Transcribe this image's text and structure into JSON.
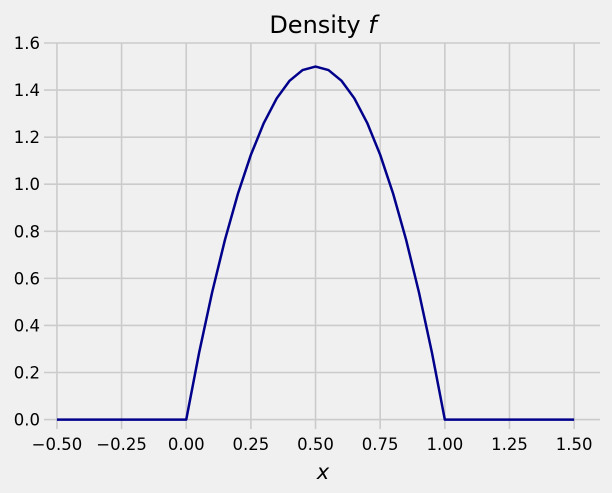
{
  "chart_data": {
    "type": "line",
    "title": "Density ",
    "title_math": "f",
    "xlabel": "x",
    "ylabel": "",
    "xlim": [
      -0.55,
      1.6
    ],
    "ylim": [
      -0.04,
      1.6
    ],
    "xticks": [
      -0.5,
      -0.25,
      0,
      0.25,
      0.5,
      0.75,
      1,
      1.25,
      1.5
    ],
    "xtick_labels": [
      "−0.50",
      "−0.25",
      "0.00",
      "0.25",
      "0.50",
      "0.75",
      "1.00",
      "1.25",
      "1.50"
    ],
    "yticks": [
      0,
      0.2,
      0.4,
      0.6,
      0.8,
      1,
      1.2,
      1.4,
      1.6
    ],
    "ytick_labels": [
      "0.0",
      "0.2",
      "0.4",
      "0.6",
      "0.8",
      "1.0",
      "1.2",
      "1.4",
      "1.6"
    ],
    "grid": true,
    "background": "#f0f0f0",
    "grid_color": "#cbcbcb",
    "series": [
      {
        "color": "#00008b",
        "x": [
          -0.5,
          0,
          0.05,
          0.1,
          0.15,
          0.2,
          0.25,
          0.3,
          0.35,
          0.4,
          0.45,
          0.5,
          0.55,
          0.6,
          0.65,
          0.7,
          0.75,
          0.8,
          0.85,
          0.9,
          0.95,
          1,
          1.5
        ],
        "y": [
          0,
          0,
          0.285,
          0.54,
          0.765,
          0.96,
          1.125,
          1.26,
          1.365,
          1.44,
          1.485,
          1.5,
          1.485,
          1.44,
          1.365,
          1.26,
          1.125,
          0.96,
          0.765,
          0.54,
          0.285,
          0,
          0
        ]
      }
    ]
  }
}
